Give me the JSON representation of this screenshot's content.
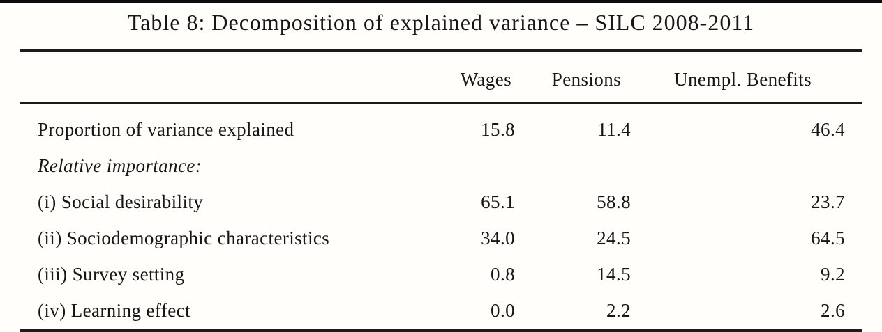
{
  "page": {
    "colors": {
      "background": "#fffefa",
      "text": "#161616",
      "rule": "#1b1b1b",
      "top_edge_bar": "#0c0c0c"
    }
  },
  "table": {
    "title": "Table 8: Decomposition of explained variance – SILC 2008-2011",
    "columns": [
      "",
      "Wages",
      "Pensions",
      "Unempl. Benefits"
    ],
    "rows": [
      {
        "label": "Proportion of variance explained",
        "italic": false,
        "values": [
          "15.8",
          "11.4",
          "46.4"
        ]
      },
      {
        "label": "Relative importance:",
        "italic": true,
        "values": [
          "",
          "",
          ""
        ]
      },
      {
        "label": "(i) Social desirability",
        "italic": false,
        "values": [
          "65.1",
          "58.8",
          "23.7"
        ]
      },
      {
        "label": "(ii) Sociodemographic characteristics",
        "italic": false,
        "values": [
          "34.0",
          "24.5",
          "64.5"
        ]
      },
      {
        "label": "(iii) Survey setting",
        "italic": false,
        "values": [
          "0.8",
          "14.5",
          "9.2"
        ]
      },
      {
        "label": "(iv) Learning effect",
        "italic": false,
        "values": [
          "0.0",
          "2.2",
          "2.6"
        ]
      }
    ]
  }
}
